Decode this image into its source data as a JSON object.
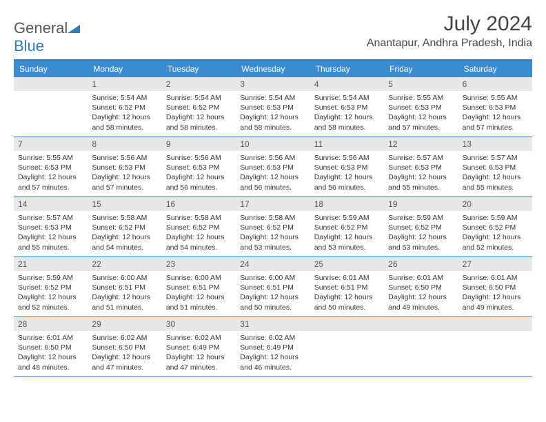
{
  "logo": {
    "text_a": "General",
    "text_b": "Blue"
  },
  "title": "July 2024",
  "location": "Anantapur, Andhra Pradesh, India",
  "colors": {
    "header_bg": "#3a8bd0",
    "border": "#2f7bbf",
    "date_bg": "#e7e7e7",
    "text": "#333333"
  },
  "day_names": [
    "Sunday",
    "Monday",
    "Tuesday",
    "Wednesday",
    "Thursday",
    "Friday",
    "Saturday"
  ],
  "weeks": [
    [
      {
        "date": "",
        "sunrise": "",
        "sunset": "",
        "daylight": ""
      },
      {
        "date": "1",
        "sunrise": "Sunrise: 5:54 AM",
        "sunset": "Sunset: 6:52 PM",
        "daylight": "Daylight: 12 hours and 58 minutes."
      },
      {
        "date": "2",
        "sunrise": "Sunrise: 5:54 AM",
        "sunset": "Sunset: 6:52 PM",
        "daylight": "Daylight: 12 hours and 58 minutes."
      },
      {
        "date": "3",
        "sunrise": "Sunrise: 5:54 AM",
        "sunset": "Sunset: 6:53 PM",
        "daylight": "Daylight: 12 hours and 58 minutes."
      },
      {
        "date": "4",
        "sunrise": "Sunrise: 5:54 AM",
        "sunset": "Sunset: 6:53 PM",
        "daylight": "Daylight: 12 hours and 58 minutes."
      },
      {
        "date": "5",
        "sunrise": "Sunrise: 5:55 AM",
        "sunset": "Sunset: 6:53 PM",
        "daylight": "Daylight: 12 hours and 57 minutes."
      },
      {
        "date": "6",
        "sunrise": "Sunrise: 5:55 AM",
        "sunset": "Sunset: 6:53 PM",
        "daylight": "Daylight: 12 hours and 57 minutes."
      }
    ],
    [
      {
        "date": "7",
        "sunrise": "Sunrise: 5:55 AM",
        "sunset": "Sunset: 6:53 PM",
        "daylight": "Daylight: 12 hours and 57 minutes."
      },
      {
        "date": "8",
        "sunrise": "Sunrise: 5:56 AM",
        "sunset": "Sunset: 6:53 PM",
        "daylight": "Daylight: 12 hours and 57 minutes."
      },
      {
        "date": "9",
        "sunrise": "Sunrise: 5:56 AM",
        "sunset": "Sunset: 6:53 PM",
        "daylight": "Daylight: 12 hours and 56 minutes."
      },
      {
        "date": "10",
        "sunrise": "Sunrise: 5:56 AM",
        "sunset": "Sunset: 6:53 PM",
        "daylight": "Daylight: 12 hours and 56 minutes."
      },
      {
        "date": "11",
        "sunrise": "Sunrise: 5:56 AM",
        "sunset": "Sunset: 6:53 PM",
        "daylight": "Daylight: 12 hours and 56 minutes."
      },
      {
        "date": "12",
        "sunrise": "Sunrise: 5:57 AM",
        "sunset": "Sunset: 6:53 PM",
        "daylight": "Daylight: 12 hours and 55 minutes."
      },
      {
        "date": "13",
        "sunrise": "Sunrise: 5:57 AM",
        "sunset": "Sunset: 6:53 PM",
        "daylight": "Daylight: 12 hours and 55 minutes."
      }
    ],
    [
      {
        "date": "14",
        "sunrise": "Sunrise: 5:57 AM",
        "sunset": "Sunset: 6:53 PM",
        "daylight": "Daylight: 12 hours and 55 minutes."
      },
      {
        "date": "15",
        "sunrise": "Sunrise: 5:58 AM",
        "sunset": "Sunset: 6:52 PM",
        "daylight": "Daylight: 12 hours and 54 minutes."
      },
      {
        "date": "16",
        "sunrise": "Sunrise: 5:58 AM",
        "sunset": "Sunset: 6:52 PM",
        "daylight": "Daylight: 12 hours and 54 minutes."
      },
      {
        "date": "17",
        "sunrise": "Sunrise: 5:58 AM",
        "sunset": "Sunset: 6:52 PM",
        "daylight": "Daylight: 12 hours and 53 minutes."
      },
      {
        "date": "18",
        "sunrise": "Sunrise: 5:59 AM",
        "sunset": "Sunset: 6:52 PM",
        "daylight": "Daylight: 12 hours and 53 minutes."
      },
      {
        "date": "19",
        "sunrise": "Sunrise: 5:59 AM",
        "sunset": "Sunset: 6:52 PM",
        "daylight": "Daylight: 12 hours and 53 minutes."
      },
      {
        "date": "20",
        "sunrise": "Sunrise: 5:59 AM",
        "sunset": "Sunset: 6:52 PM",
        "daylight": "Daylight: 12 hours and 52 minutes."
      }
    ],
    [
      {
        "date": "21",
        "sunrise": "Sunrise: 5:59 AM",
        "sunset": "Sunset: 6:52 PM",
        "daylight": "Daylight: 12 hours and 52 minutes."
      },
      {
        "date": "22",
        "sunrise": "Sunrise: 6:00 AM",
        "sunset": "Sunset: 6:51 PM",
        "daylight": "Daylight: 12 hours and 51 minutes."
      },
      {
        "date": "23",
        "sunrise": "Sunrise: 6:00 AM",
        "sunset": "Sunset: 6:51 PM",
        "daylight": "Daylight: 12 hours and 51 minutes."
      },
      {
        "date": "24",
        "sunrise": "Sunrise: 6:00 AM",
        "sunset": "Sunset: 6:51 PM",
        "daylight": "Daylight: 12 hours and 50 minutes."
      },
      {
        "date": "25",
        "sunrise": "Sunrise: 6:01 AM",
        "sunset": "Sunset: 6:51 PM",
        "daylight": "Daylight: 12 hours and 50 minutes."
      },
      {
        "date": "26",
        "sunrise": "Sunrise: 6:01 AM",
        "sunset": "Sunset: 6:50 PM",
        "daylight": "Daylight: 12 hours and 49 minutes."
      },
      {
        "date": "27",
        "sunrise": "Sunrise: 6:01 AM",
        "sunset": "Sunset: 6:50 PM",
        "daylight": "Daylight: 12 hours and 49 minutes."
      }
    ],
    [
      {
        "date": "28",
        "sunrise": "Sunrise: 6:01 AM",
        "sunset": "Sunset: 6:50 PM",
        "daylight": "Daylight: 12 hours and 48 minutes."
      },
      {
        "date": "29",
        "sunrise": "Sunrise: 6:02 AM",
        "sunset": "Sunset: 6:50 PM",
        "daylight": "Daylight: 12 hours and 47 minutes."
      },
      {
        "date": "30",
        "sunrise": "Sunrise: 6:02 AM",
        "sunset": "Sunset: 6:49 PM",
        "daylight": "Daylight: 12 hours and 47 minutes."
      },
      {
        "date": "31",
        "sunrise": "Sunrise: 6:02 AM",
        "sunset": "Sunset: 6:49 PM",
        "daylight": "Daylight: 12 hours and 46 minutes."
      },
      {
        "date": "",
        "sunrise": "",
        "sunset": "",
        "daylight": ""
      },
      {
        "date": "",
        "sunrise": "",
        "sunset": "",
        "daylight": ""
      },
      {
        "date": "",
        "sunrise": "",
        "sunset": "",
        "daylight": ""
      }
    ]
  ]
}
